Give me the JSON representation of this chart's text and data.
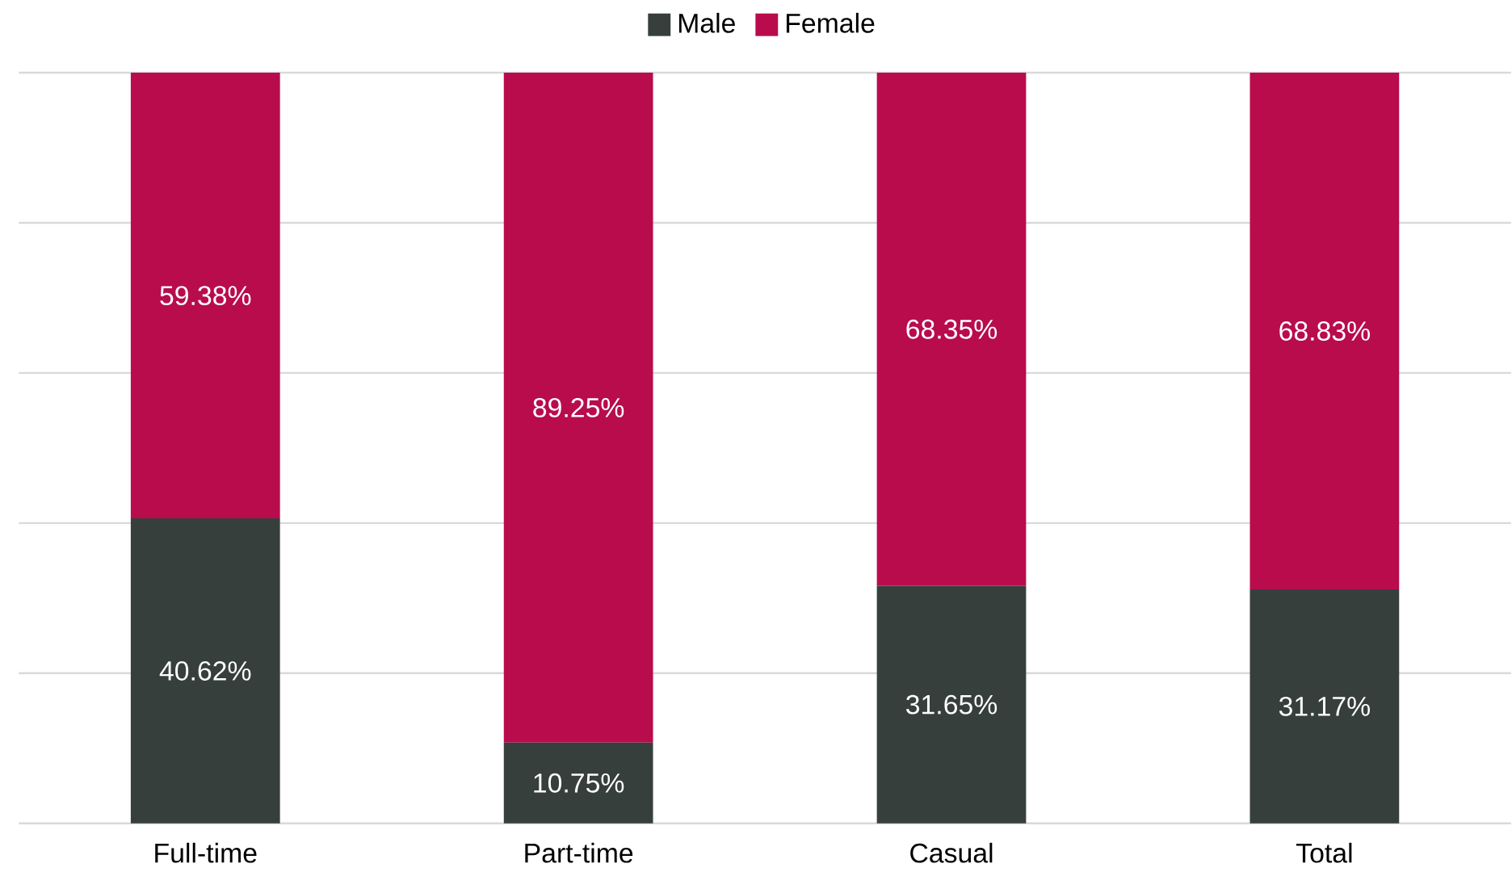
{
  "chart_data": {
    "type": "bar",
    "stacked": true,
    "categories": [
      "Full-time",
      "Part-time",
      "Casual",
      "Total"
    ],
    "series": [
      {
        "name": "Male",
        "color": "#373f3c",
        "values": [
          40.62,
          10.75,
          31.65,
          31.17
        ],
        "value_labels": [
          "40.62%",
          "10.75%",
          "31.65%",
          "31.17%"
        ]
      },
      {
        "name": "Female",
        "color": "#b80c4d",
        "values": [
          59.38,
          89.25,
          68.35,
          68.83
        ],
        "value_labels": [
          "59.38%",
          "89.25%",
          "68.35%",
          "68.83%"
        ]
      }
    ],
    "ylim": [
      0,
      100
    ],
    "yticks": [
      {
        "value": 0,
        "label": null
      },
      {
        "value": 20,
        "label": null
      },
      {
        "value": 40,
        "label": null
      },
      {
        "value": 60,
        "label": null
      },
      {
        "value": 80,
        "label": null
      },
      {
        "value": 100,
        "label": null
      }
    ],
    "grid": "y",
    "legend": "top",
    "tick_labels": "x"
  }
}
